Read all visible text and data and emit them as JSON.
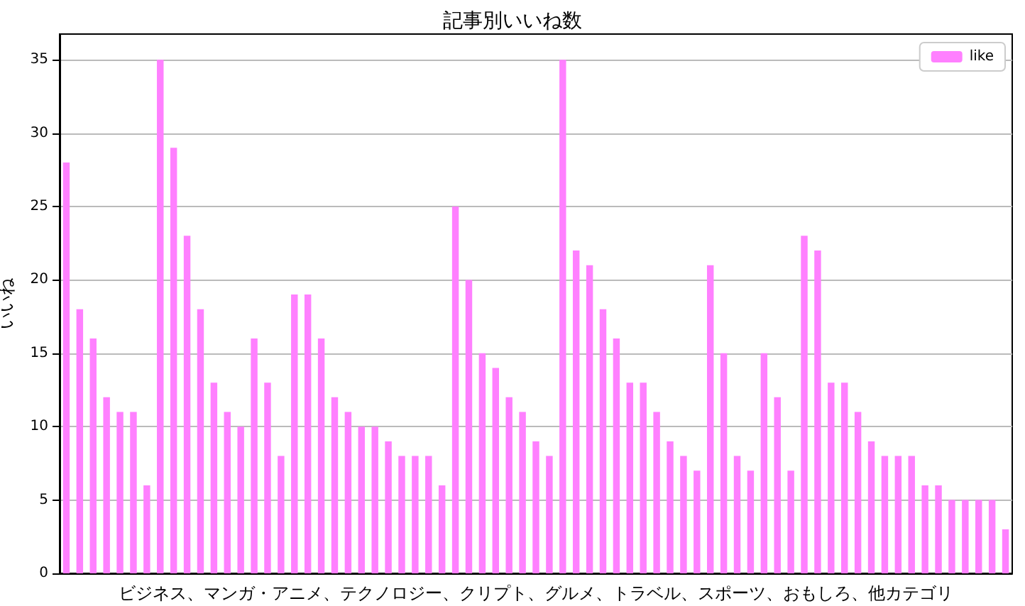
{
  "chart_data": {
    "type": "bar",
    "title": "記事別いいね数",
    "xlabel": "ビジネス、マンガ・アニメ、テクノロジー、クリプト、グルメ、トラベル、スポーツ、おもしろ、他カテゴリ",
    "ylabel": "いいね",
    "categories": [
      null,
      null,
      null,
      null,
      null,
      null,
      null,
      null,
      null,
      null,
      null,
      null,
      null,
      null,
      null,
      null,
      null,
      null,
      null,
      null,
      null,
      null,
      null,
      null,
      null,
      null,
      null,
      null,
      null,
      null,
      null,
      null,
      null,
      null,
      null,
      null,
      null,
      null,
      null,
      null,
      null,
      null,
      null,
      null,
      null,
      null,
      null,
      null,
      null,
      null,
      null,
      null,
      null,
      null,
      null,
      null,
      null,
      null,
      null,
      null,
      null,
      null,
      null,
      null,
      null,
      null,
      null,
      null,
      null,
      null,
      null
    ],
    "series": [
      {
        "name": "like",
        "color": "#ff80ff",
        "values": [
          28,
          18,
          16,
          12,
          11,
          11,
          6,
          35,
          29,
          23,
          18,
          13,
          11,
          10,
          16,
          13,
          8,
          19,
          19,
          16,
          12,
          11,
          10,
          10,
          9,
          8,
          8,
          8,
          6,
          25,
          20,
          15,
          14,
          12,
          11,
          9,
          8,
          35,
          22,
          21,
          18,
          16,
          13,
          13,
          11,
          9,
          8,
          7,
          21,
          15,
          8,
          7,
          15,
          12,
          7,
          23,
          22,
          13,
          13,
          11,
          9,
          8,
          8,
          8,
          6,
          6,
          5,
          5,
          5,
          5,
          3
        ]
      }
    ],
    "ylim": [
      0,
      36.75
    ],
    "yticks": [
      0,
      5,
      10,
      15,
      20,
      25,
      30,
      35
    ],
    "grid": "y",
    "legend": "top right",
    "tick_labels": "y"
  }
}
